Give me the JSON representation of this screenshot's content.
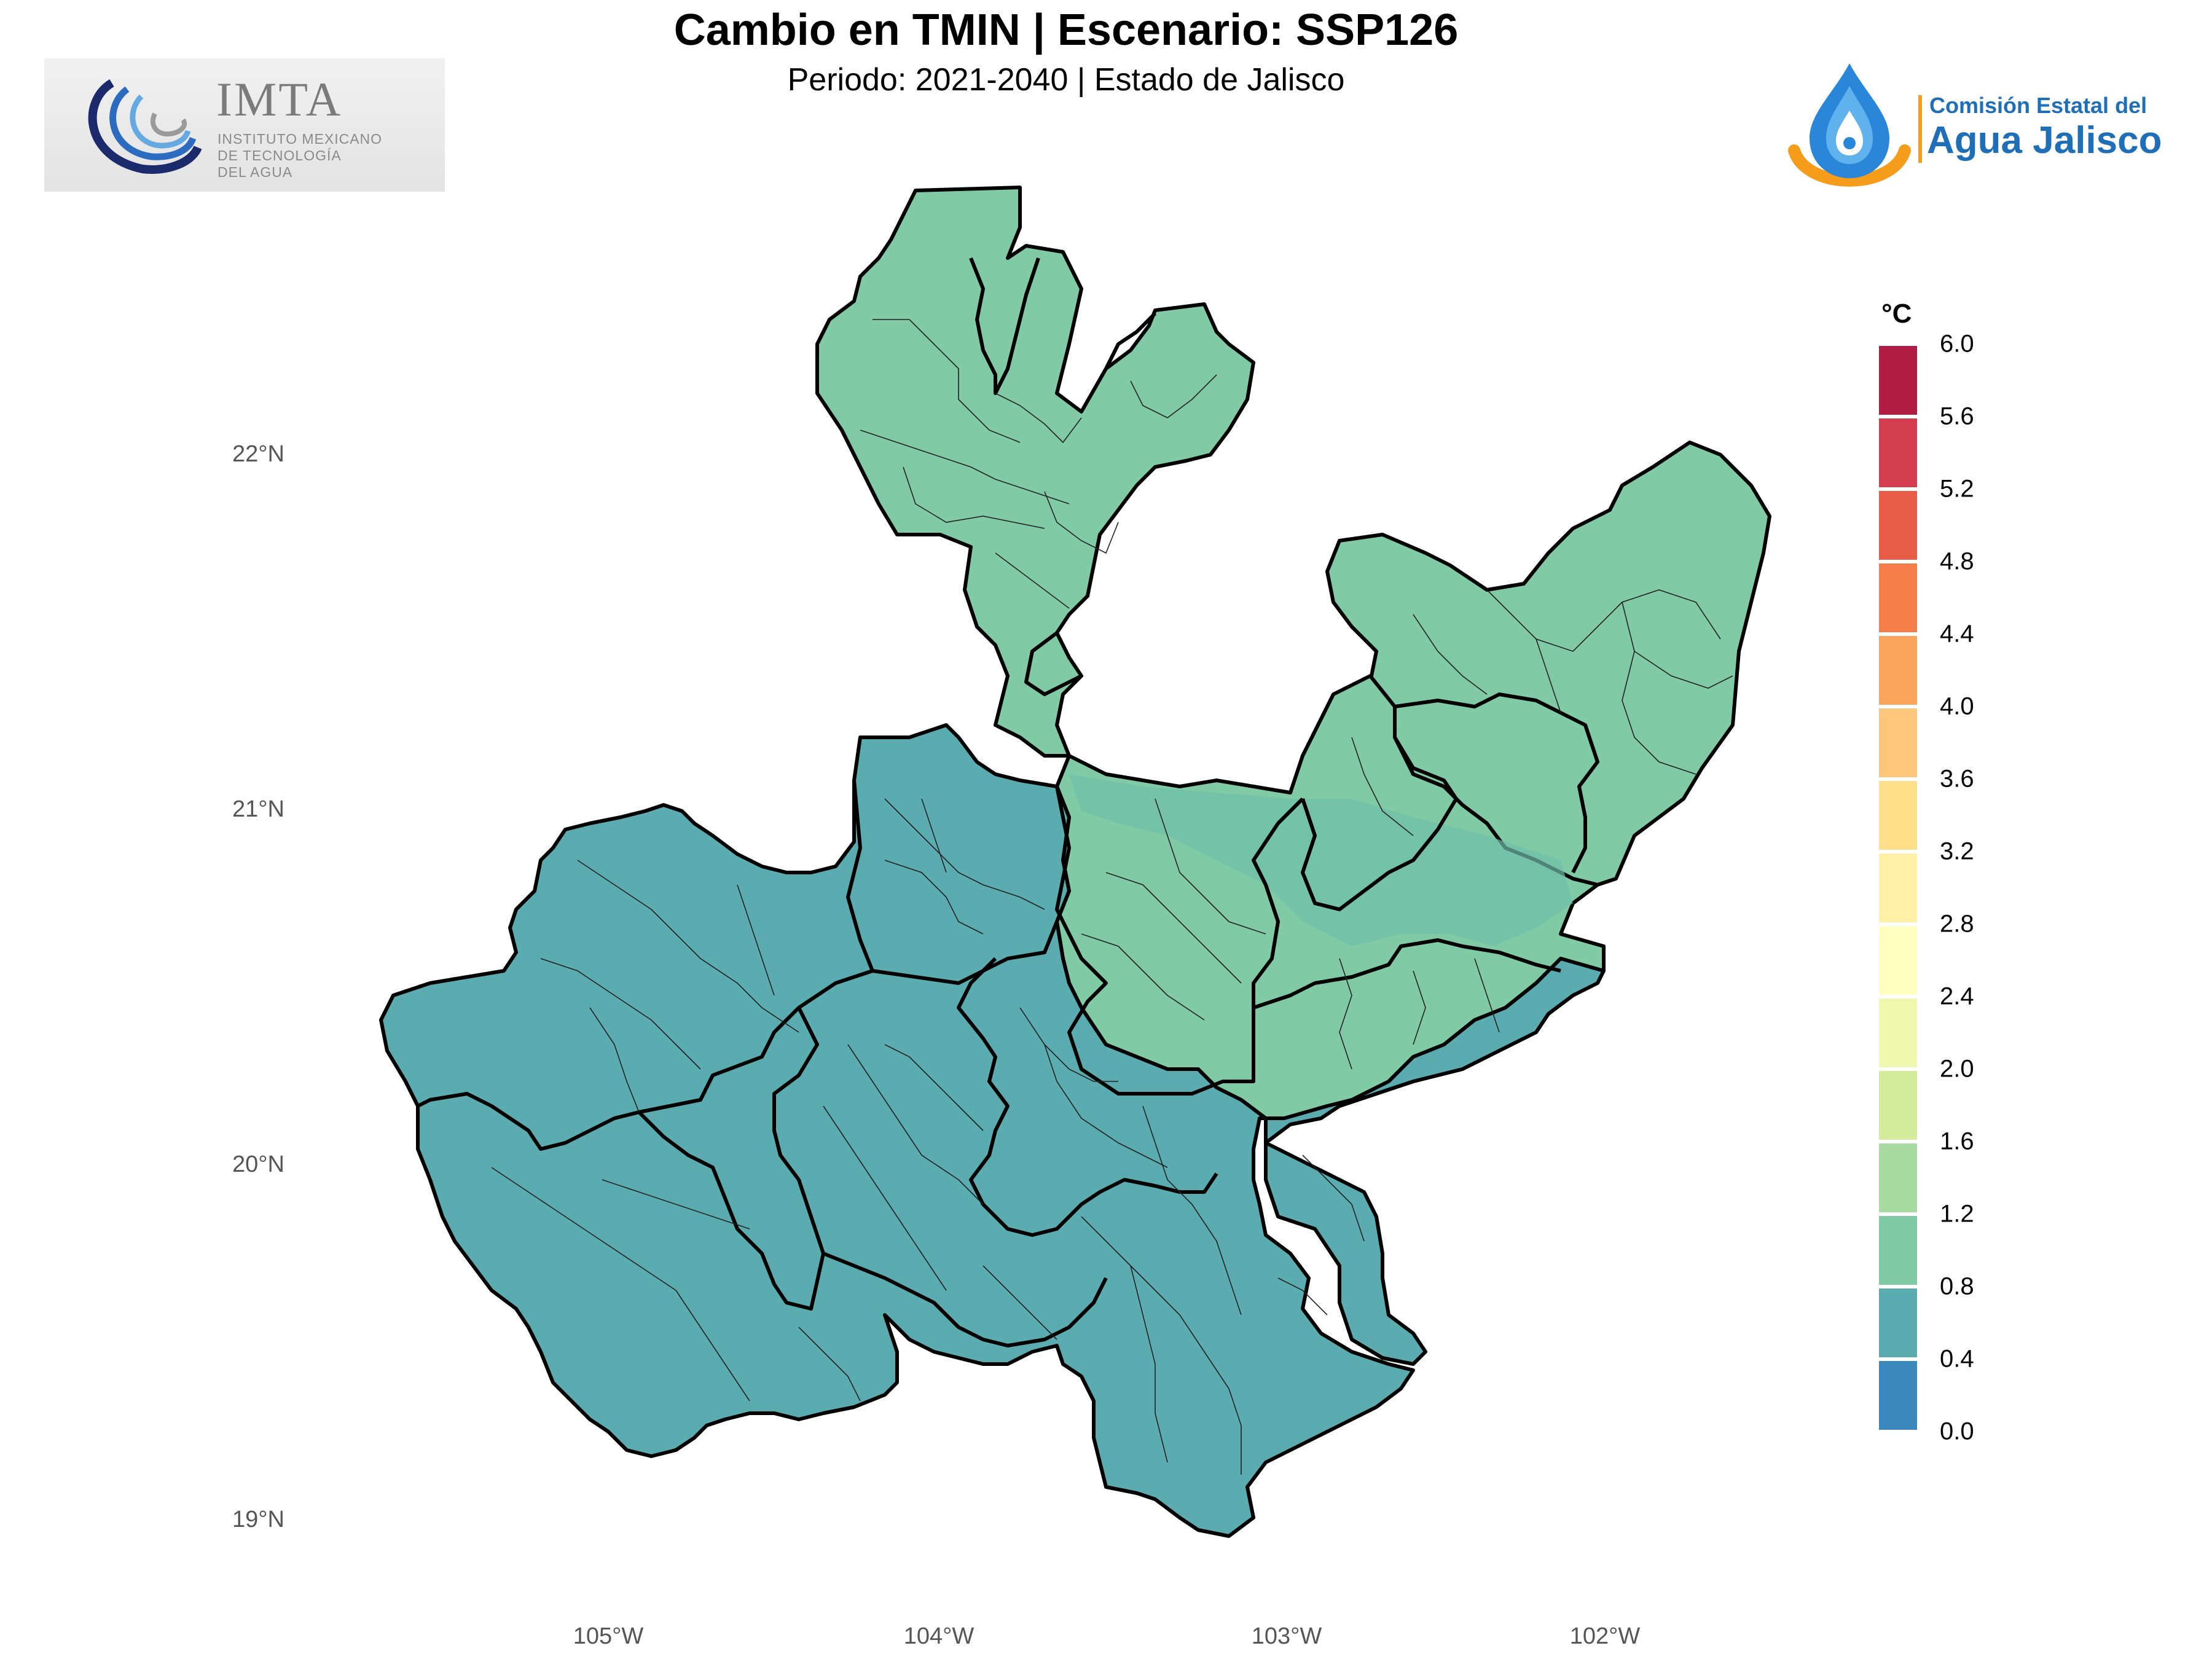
{
  "header": {
    "title": "Cambio en TMIN | Escenario: SSP126",
    "subtitle": "Periodo: 2021-2040 | Estado de Jalisco"
  },
  "logos": {
    "imta": {
      "name": "IMTA",
      "line1": "INSTITUTO MEXICANO",
      "line2": "DE TECNOLOGÍA",
      "line3": "DEL AGUA"
    },
    "cea": {
      "line1": "Comisión Estatal del",
      "line2": "Agua Jalisco"
    }
  },
  "map": {
    "latitude_labels": [
      "22°N",
      "21°N",
      "20°N",
      "19°N"
    ],
    "longitude_labels": [
      "105°W",
      "104°W",
      "103°W",
      "102°W"
    ],
    "region_colors": {
      "band_1_2_to_1_6": "#80cba5",
      "band_0_8_to_1_2": "#5bacb0"
    }
  },
  "legend": {
    "title": "°C",
    "ticks": [
      "6.0",
      "5.6",
      "5.2",
      "4.8",
      "4.4",
      "4.0",
      "3.6",
      "3.2",
      "2.8",
      "2.4",
      "2.0",
      "1.6",
      "1.2",
      "0.8",
      "0.4",
      "0.0"
    ],
    "colors": [
      "#b01c44",
      "#d43d4f",
      "#e85b47",
      "#f57e4b",
      "#fba55c",
      "#fdc67a",
      "#fee08b",
      "#fff0a6",
      "#ffffbf",
      "#f0f8b0",
      "#d3eb9a",
      "#a8dba2",
      "#80cba5",
      "#5bacb0",
      "#3a88bd",
      "#5a5fa8"
    ]
  }
}
